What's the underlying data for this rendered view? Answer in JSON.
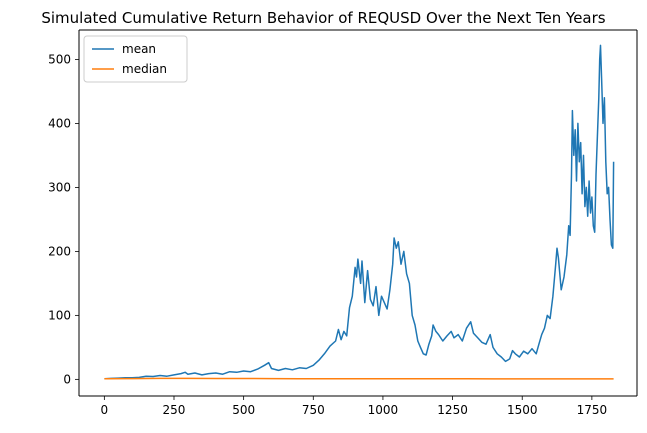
{
  "chart_data": {
    "type": "line",
    "title": "Simulated Cumulative Return Behavior of REQUSD Over the Next Ten Years",
    "xlabel": "",
    "ylabel": "",
    "xlim": [
      -91,
      1912
    ],
    "ylim": [
      -26,
      546
    ],
    "xticks": [
      0,
      250,
      500,
      750,
      1000,
      1250,
      1500,
      1750
    ],
    "yticks": [
      0,
      100,
      200,
      300,
      400,
      500
    ],
    "grid": false,
    "legend_position": "top-left",
    "series": [
      {
        "name": "mean",
        "color": "#1f77b4",
        "points": [
          [
            0,
            1
          ],
          [
            25,
            1.5
          ],
          [
            50,
            2
          ],
          [
            75,
            2.5
          ],
          [
            100,
            2.5
          ],
          [
            125,
            3
          ],
          [
            150,
            5
          ],
          [
            175,
            4.5
          ],
          [
            200,
            6
          ],
          [
            225,
            5
          ],
          [
            250,
            7
          ],
          [
            275,
            9
          ],
          [
            290,
            11
          ],
          [
            300,
            8
          ],
          [
            325,
            10
          ],
          [
            350,
            7
          ],
          [
            375,
            9
          ],
          [
            400,
            10
          ],
          [
            425,
            8
          ],
          [
            450,
            12
          ],
          [
            475,
            11
          ],
          [
            500,
            13
          ],
          [
            525,
            12
          ],
          [
            550,
            16
          ],
          [
            575,
            22
          ],
          [
            590,
            26
          ],
          [
            600,
            17
          ],
          [
            625,
            14
          ],
          [
            650,
            17
          ],
          [
            675,
            15
          ],
          [
            700,
            18
          ],
          [
            725,
            17
          ],
          [
            750,
            22
          ],
          [
            770,
            30
          ],
          [
            790,
            40
          ],
          [
            810,
            52
          ],
          [
            830,
            60
          ],
          [
            840,
            78
          ],
          [
            850,
            62
          ],
          [
            860,
            75
          ],
          [
            870,
            68
          ],
          [
            880,
            112
          ],
          [
            890,
            130
          ],
          [
            900,
            175
          ],
          [
            905,
            160
          ],
          [
            910,
            188
          ],
          [
            920,
            150
          ],
          [
            925,
            185
          ],
          [
            935,
            120
          ],
          [
            945,
            170
          ],
          [
            955,
            125
          ],
          [
            965,
            115
          ],
          [
            975,
            145
          ],
          [
            985,
            100
          ],
          [
            995,
            130
          ],
          [
            1005,
            120
          ],
          [
            1015,
            110
          ],
          [
            1025,
            140
          ],
          [
            1035,
            180
          ],
          [
            1040,
            221
          ],
          [
            1048,
            205
          ],
          [
            1055,
            215
          ],
          [
            1065,
            180
          ],
          [
            1075,
            200
          ],
          [
            1085,
            165
          ],
          [
            1095,
            150
          ],
          [
            1105,
            100
          ],
          [
            1115,
            85
          ],
          [
            1125,
            60
          ],
          [
            1135,
            50
          ],
          [
            1145,
            40
          ],
          [
            1155,
            38
          ],
          [
            1165,
            55
          ],
          [
            1175,
            68
          ],
          [
            1180,
            85
          ],
          [
            1190,
            75
          ],
          [
            1200,
            70
          ],
          [
            1215,
            60
          ],
          [
            1230,
            68
          ],
          [
            1245,
            75
          ],
          [
            1255,
            65
          ],
          [
            1270,
            70
          ],
          [
            1285,
            60
          ],
          [
            1300,
            80
          ],
          [
            1315,
            90
          ],
          [
            1325,
            72
          ],
          [
            1340,
            65
          ],
          [
            1355,
            58
          ],
          [
            1370,
            55
          ],
          [
            1385,
            70
          ],
          [
            1395,
            50
          ],
          [
            1410,
            40
          ],
          [
            1425,
            35
          ],
          [
            1440,
            28
          ],
          [
            1455,
            32
          ],
          [
            1465,
            45
          ],
          [
            1475,
            40
          ],
          [
            1490,
            35
          ],
          [
            1505,
            44
          ],
          [
            1520,
            40
          ],
          [
            1535,
            48
          ],
          [
            1550,
            40
          ],
          [
            1560,
            55
          ],
          [
            1570,
            70
          ],
          [
            1580,
            80
          ],
          [
            1590,
            100
          ],
          [
            1600,
            95
          ],
          [
            1610,
            130
          ],
          [
            1620,
            180
          ],
          [
            1625,
            205
          ],
          [
            1630,
            190
          ],
          [
            1640,
            140
          ],
          [
            1650,
            160
          ],
          [
            1660,
            195
          ],
          [
            1667,
            240
          ],
          [
            1672,
            225
          ],
          [
            1677,
            320
          ],
          [
            1680,
            420
          ],
          [
            1685,
            350
          ],
          [
            1690,
            390
          ],
          [
            1695,
            310
          ],
          [
            1700,
            400
          ],
          [
            1705,
            340
          ],
          [
            1710,
            370
          ],
          [
            1715,
            290
          ],
          [
            1720,
            350
          ],
          [
            1725,
            270
          ],
          [
            1730,
            300
          ],
          [
            1735,
            255
          ],
          [
            1740,
            310
          ],
          [
            1745,
            260
          ],
          [
            1750,
            285
          ],
          [
            1755,
            240
          ],
          [
            1760,
            230
          ],
          [
            1765,
            320
          ],
          [
            1770,
            380
          ],
          [
            1775,
            440
          ],
          [
            1778,
            500
          ],
          [
            1781,
            522
          ],
          [
            1785,
            470
          ],
          [
            1790,
            400
          ],
          [
            1795,
            440
          ],
          [
            1800,
            340
          ],
          [
            1805,
            290
          ],
          [
            1810,
            300
          ],
          [
            1815,
            250
          ],
          [
            1820,
            210
          ],
          [
            1825,
            205
          ],
          [
            1828,
            340
          ]
        ]
      },
      {
        "name": "median",
        "color": "#ff7f0e",
        "points": [
          [
            0,
            1
          ],
          [
            100,
            1.2
          ],
          [
            200,
            1.5
          ],
          [
            300,
            1.5
          ],
          [
            400,
            1.3
          ],
          [
            500,
            1.4
          ],
          [
            600,
            1.2
          ],
          [
            700,
            1.1
          ],
          [
            800,
            1.0
          ],
          [
            900,
            0.9
          ],
          [
            1000,
            1.0
          ],
          [
            1100,
            1.0
          ],
          [
            1200,
            0.9
          ],
          [
            1300,
            0.9
          ],
          [
            1400,
            0.8
          ],
          [
            1500,
            0.8
          ],
          [
            1600,
            0.7
          ],
          [
            1700,
            0.7
          ],
          [
            1800,
            0.7
          ],
          [
            1828,
            0.7
          ]
        ]
      }
    ]
  }
}
